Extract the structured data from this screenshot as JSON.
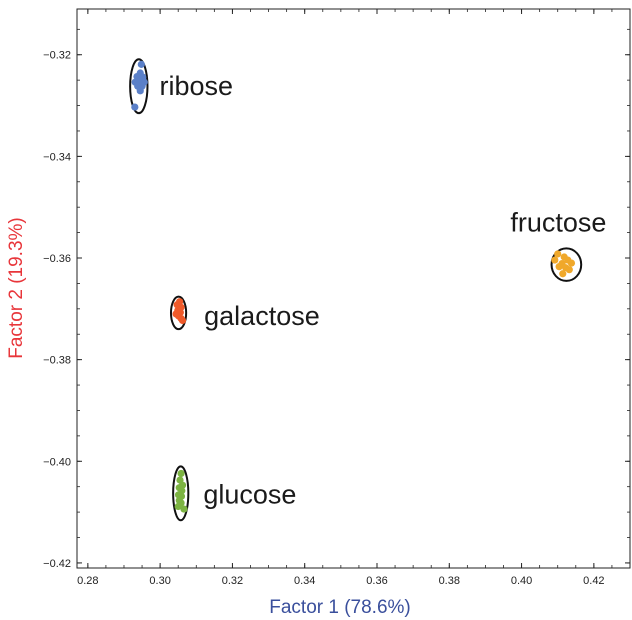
{
  "chart_data": {
    "type": "scatter",
    "title": "",
    "xlabel": "Factor 1 (78.6%)",
    "ylabel": "Factor 2 (19.3%)",
    "xlim": [
      0.277,
      0.43
    ],
    "ylim": [
      -0.421,
      -0.311
    ],
    "grid": false,
    "x_ticks": [
      0.28,
      0.3,
      0.32,
      0.34,
      0.36,
      0.38,
      0.4,
      0.42
    ],
    "x_tick_labels": [
      "0.28",
      "0.30",
      "0.32",
      "0.34",
      "0.36",
      "0.38",
      "0.40",
      "0.42"
    ],
    "y_ticks": [
      -0.32,
      -0.34,
      -0.36,
      -0.38,
      -0.4,
      -0.42
    ],
    "y_tick_labels": [
      "−0.32",
      "−0.34",
      "−0.36",
      "−0.38",
      "−0.40",
      "−0.42"
    ],
    "colors": {
      "xlabel": "#3a4f9c",
      "ylabel": "#e8353a",
      "ribose": "#5b80c8",
      "galactose": "#ef5a2a",
      "glucose": "#7cb342",
      "fructose": "#f0a82a",
      "ellipse": "#111111"
    },
    "series": [
      {
        "name": "ribose",
        "color": "#5b80c8",
        "ellipse": {
          "cx": 0.2941,
          "cy": -0.3262,
          "rx": 0.0024,
          "ry": 0.0053
        },
        "points": [
          {
            "x": 0.2948,
            "y": -0.3219
          },
          {
            "x": 0.2945,
            "y": -0.3236
          },
          {
            "x": 0.2936,
            "y": -0.3243
          },
          {
            "x": 0.2952,
            "y": -0.3244
          },
          {
            "x": 0.2931,
            "y": -0.3254
          },
          {
            "x": 0.2942,
            "y": -0.3251
          },
          {
            "x": 0.2956,
            "y": -0.3254
          },
          {
            "x": 0.2938,
            "y": -0.3262
          },
          {
            "x": 0.295,
            "y": -0.3262
          },
          {
            "x": 0.2945,
            "y": -0.3271
          },
          {
            "x": 0.293,
            "y": -0.3303
          }
        ]
      },
      {
        "name": "fructose",
        "color": "#f0a82a",
        "ellipse": {
          "cx": 0.4124,
          "cy": -0.3613,
          "rx": 0.0041,
          "ry": 0.0032
        },
        "points": [
          {
            "x": 0.41,
            "y": -0.3592
          },
          {
            "x": 0.4118,
            "y": -0.3598
          },
          {
            "x": 0.4092,
            "y": -0.3604
          },
          {
            "x": 0.4128,
            "y": -0.3604
          },
          {
            "x": 0.4112,
            "y": -0.3611
          },
          {
            "x": 0.4138,
            "y": -0.361
          },
          {
            "x": 0.4104,
            "y": -0.3617
          },
          {
            "x": 0.4122,
            "y": -0.3619
          },
          {
            "x": 0.4132,
            "y": -0.3623
          },
          {
            "x": 0.4114,
            "y": -0.3631
          }
        ]
      },
      {
        "name": "galactose",
        "color": "#ef5a2a",
        "ellipse": {
          "cx": 0.3051,
          "cy": -0.3708,
          "rx": 0.0021,
          "ry": 0.0032
        },
        "points": [
          {
            "x": 0.3054,
            "y": -0.3686
          },
          {
            "x": 0.3047,
            "y": -0.3692
          },
          {
            "x": 0.3058,
            "y": -0.3697
          },
          {
            "x": 0.3049,
            "y": -0.3703
          },
          {
            "x": 0.3044,
            "y": -0.371
          },
          {
            "x": 0.3056,
            "y": -0.3707
          },
          {
            "x": 0.3051,
            "y": -0.3714
          },
          {
            "x": 0.3058,
            "y": -0.3719
          },
          {
            "x": 0.3062,
            "y": -0.3723
          }
        ]
      },
      {
        "name": "glucose",
        "color": "#7cb342",
        "ellipse": {
          "cx": 0.3057,
          "cy": -0.4063,
          "rx": 0.0021,
          "ry": 0.0053
        },
        "points": [
          {
            "x": 0.3058,
            "y": -0.4024
          },
          {
            "x": 0.3055,
            "y": -0.4037
          },
          {
            "x": 0.3062,
            "y": -0.4047
          },
          {
            "x": 0.3053,
            "y": -0.4052
          },
          {
            "x": 0.306,
            "y": -0.4058
          },
          {
            "x": 0.3051,
            "y": -0.4066
          },
          {
            "x": 0.3059,
            "y": -0.4069
          },
          {
            "x": 0.3053,
            "y": -0.4077
          },
          {
            "x": 0.3058,
            "y": -0.4082
          },
          {
            "x": 0.305,
            "y": -0.4089
          },
          {
            "x": 0.3066,
            "y": -0.4094
          }
        ]
      }
    ]
  }
}
